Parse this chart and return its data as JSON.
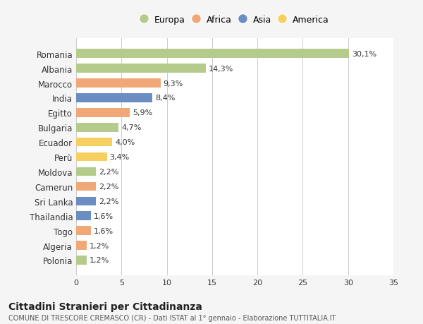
{
  "countries": [
    "Romania",
    "Albania",
    "Marocco",
    "India",
    "Egitto",
    "Bulgaria",
    "Ecuador",
    "Perù",
    "Moldova",
    "Camerun",
    "Sri Lanka",
    "Thailandia",
    "Togo",
    "Algeria",
    "Polonia"
  ],
  "values": [
    30.1,
    14.3,
    9.3,
    8.4,
    5.9,
    4.7,
    4.0,
    3.4,
    2.2,
    2.2,
    2.2,
    1.6,
    1.6,
    1.2,
    1.2
  ],
  "labels": [
    "30,1%",
    "14,3%",
    "9,3%",
    "8,4%",
    "5,9%",
    "4,7%",
    "4,0%",
    "3,4%",
    "2,2%",
    "2,2%",
    "2,2%",
    "1,6%",
    "1,6%",
    "1,2%",
    "1,2%"
  ],
  "continent": [
    "Europa",
    "Europa",
    "Africa",
    "Asia",
    "Africa",
    "Europa",
    "America",
    "America",
    "Europa",
    "Africa",
    "Asia",
    "Asia",
    "Africa",
    "Africa",
    "Europa"
  ],
  "colors": {
    "Europa": "#b5cb8b",
    "Africa": "#f0a878",
    "Asia": "#6b8ec2",
    "America": "#f5d060"
  },
  "legend_order": [
    "Europa",
    "Africa",
    "Asia",
    "America"
  ],
  "title1": "Cittadini Stranieri per Cittadinanza",
  "title2": "COMUNE DI TRESCORE CREMASCO (CR) - Dati ISTAT al 1° gennaio - Elaborazione TUTTITALIA.IT",
  "xlim": [
    0,
    35
  ],
  "xticks": [
    0,
    5,
    10,
    15,
    20,
    25,
    30,
    35
  ],
  "background_color": "#f5f5f5",
  "bar_background": "#ffffff"
}
